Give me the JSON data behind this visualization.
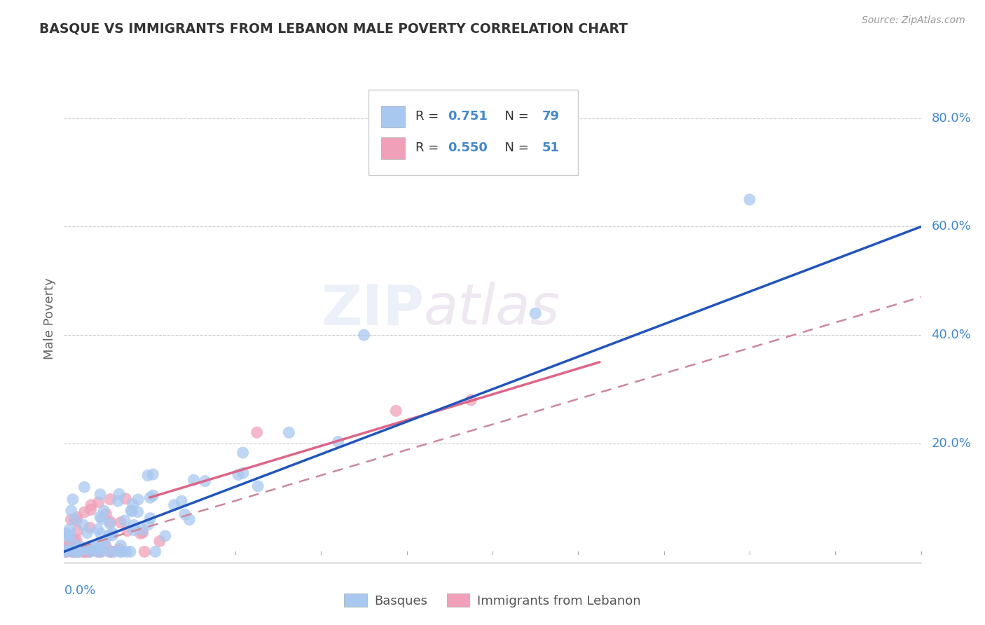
{
  "title": "BASQUE VS IMMIGRANTS FROM LEBANON MALE POVERTY CORRELATION CHART",
  "source": "Source: ZipAtlas.com",
  "ylabel": "Male Poverty",
  "ylabel_ticks": [
    "20.0%",
    "40.0%",
    "60.0%",
    "80.0%"
  ],
  "ylabel_tick_vals": [
    0.2,
    0.4,
    0.6,
    0.8
  ],
  "watermark_zip": "ZIP",
  "watermark_atlas": "atlas",
  "legend_label1": "Basques",
  "legend_label2": "Immigrants from Lebanon",
  "R1": "0.751",
  "N1": "79",
  "R2": "0.550",
  "N2": "51",
  "blue_color": "#A8C8F0",
  "pink_color": "#F0A0B8",
  "line_blue": "#2255BB",
  "line_pink_solid": "#DD6688",
  "line_pink_dash": "#CC8899",
  "text_blue": "#4488CC",
  "xlim": [
    0.0,
    0.4
  ],
  "ylim": [
    -0.02,
    0.88
  ]
}
